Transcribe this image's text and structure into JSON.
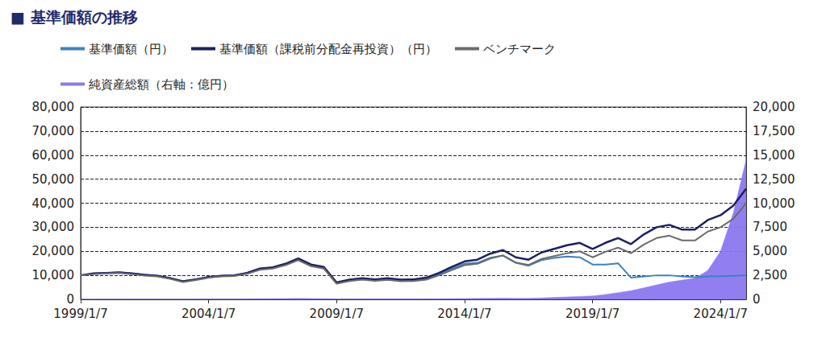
{
  "chart_data": {
    "type": "line",
    "title": "■ 基準価額の推移",
    "x": [
      "1999/1/7",
      null,
      null,
      null,
      null,
      null,
      null,
      null,
      null,
      null,
      "2004/1/7",
      null,
      null,
      null,
      null,
      null,
      null,
      null,
      null,
      null,
      "2009/1/7",
      null,
      null,
      null,
      null,
      null,
      null,
      null,
      null,
      null,
      "2014/1/7",
      null,
      null,
      null,
      null,
      null,
      null,
      null,
      null,
      null,
      "2019/1/7",
      null,
      null,
      null,
      null,
      null,
      null,
      null,
      null,
      null,
      "2024/1/7",
      null,
      null
    ],
    "series": [
      {
        "name": "基準価額（円）",
        "color": "#3b82c4",
        "type": "line",
        "values": [
          10000,
          10800,
          11000,
          11200,
          10800,
          10200,
          9800,
          8800,
          7500,
          8300,
          9300,
          9800,
          10000,
          11000,
          12700,
          13200,
          14600,
          16700,
          14200,
          13200,
          6800,
          8000,
          8500,
          8000,
          8500,
          7900,
          8000,
          8600,
          10500,
          12800,
          14800,
          15200,
          17300,
          18200,
          15200,
          14000,
          16300,
          17200,
          17800,
          17500,
          14500,
          14500,
          15000,
          9000,
          9500,
          10000,
          10000,
          9500,
          9200,
          9500,
          9600,
          9800,
          10000
        ]
      },
      {
        "name": "基準価額（課税前分配金再投資）（円）",
        "color": "#1b2063",
        "type": "line",
        "values": [
          10000,
          10800,
          11000,
          11200,
          10800,
          10200,
          9800,
          8800,
          7500,
          8300,
          9300,
          9800,
          10000,
          11000,
          12800,
          13300,
          14800,
          17000,
          14500,
          13500,
          7000,
          8200,
          8800,
          8300,
          8800,
          8200,
          8300,
          9000,
          11000,
          13500,
          15800,
          16500,
          19000,
          20500,
          17500,
          16500,
          19500,
          21000,
          22500,
          23500,
          21000,
          23500,
          25500,
          23000,
          27000,
          30000,
          31000,
          29000,
          29000,
          33000,
          35000,
          39000,
          46000
        ]
      },
      {
        "name": "ベンチマーク",
        "color": "#6b6b6b",
        "type": "line",
        "values": [
          10000,
          10500,
          10800,
          11000,
          10500,
          9900,
          9500,
          8500,
          7200,
          8000,
          9000,
          9500,
          9700,
          10600,
          12300,
          12800,
          14200,
          16300,
          13800,
          12800,
          6500,
          7600,
          8200,
          7700,
          8100,
          7500,
          7600,
          8200,
          10000,
          12200,
          14200,
          14800,
          17000,
          18300,
          15300,
          14300,
          16800,
          18000,
          19200,
          20000,
          17500,
          19800,
          21500,
          19200,
          22800,
          25500,
          26500,
          24500,
          24500,
          28200,
          30000,
          33500,
          40000
        ]
      },
      {
        "name": "純資産総額（右軸：億円）",
        "color": "#8b78f0",
        "type": "area",
        "axis": "y2",
        "values": [
          10,
          20,
          30,
          40,
          40,
          40,
          40,
          40,
          30,
          40,
          50,
          50,
          50,
          60,
          70,
          80,
          90,
          100,
          90,
          80,
          50,
          60,
          60,
          60,
          60,
          60,
          60,
          60,
          70,
          80,
          90,
          100,
          110,
          120,
          110,
          110,
          150,
          200,
          250,
          300,
          350,
          500,
          700,
          900,
          1200,
          1500,
          1800,
          2000,
          2200,
          3000,
          5000,
          9000,
          14500
        ]
      }
    ],
    "ylim": [
      0,
      80000
    ],
    "yticks": [
      0,
      {
        "value": 10000,
        "label": "10,000"
      },
      {
        "value": 20000,
        "label": "20,000"
      },
      {
        "value": 30000,
        "label": "30,000"
      },
      {
        "value": 40000,
        "label": "40,000"
      },
      {
        "value": 50000,
        "label": "50,000"
      },
      {
        "value": 60000,
        "label": "60,000"
      },
      {
        "value": 70000,
        "label": "70,000"
      },
      {
        "value": 80000,
        "label": "80,000"
      }
    ],
    "y2lim": [
      0,
      20000
    ],
    "y2ticks": [
      0,
      {
        "value": 2500,
        "label": "2,500"
      },
      {
        "value": 5000,
        "label": "5,000"
      },
      {
        "value": 7500,
        "label": "7,500"
      },
      {
        "value": 10000,
        "label": "10,000"
      },
      {
        "value": 12500,
        "label": "12,500"
      },
      {
        "value": 15000,
        "label": "15,000"
      },
      {
        "value": 17500,
        "label": "17,500"
      },
      {
        "value": 20000,
        "label": "20,000"
      }
    ],
    "grid": true,
    "legend": "top"
  }
}
